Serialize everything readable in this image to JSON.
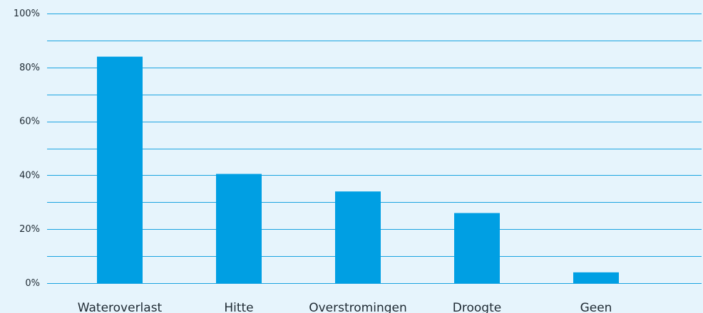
{
  "chart_data": {
    "type": "bar",
    "categories": [
      "Wateroverlast",
      "Hitte",
      "Overstromingen",
      "Droogte",
      "Geen"
    ],
    "values": [
      84,
      40.5,
      34,
      26,
      4
    ],
    "ylim": [
      0,
      100
    ],
    "y_ticks": [
      {
        "value": 0,
        "label": "0%"
      },
      {
        "value": 20,
        "label": "20%"
      },
      {
        "value": 40,
        "label": "40%"
      },
      {
        "value": 60,
        "label": "60%"
      },
      {
        "value": 80,
        "label": "80%"
      },
      {
        "value": 100,
        "label": "100%"
      }
    ],
    "minor_grid_step": 10,
    "grid": true,
    "legend": "none",
    "colors": {
      "background": "#e6f4fc",
      "bar": "#009fe3",
      "grid": "#1aa3e0"
    }
  }
}
